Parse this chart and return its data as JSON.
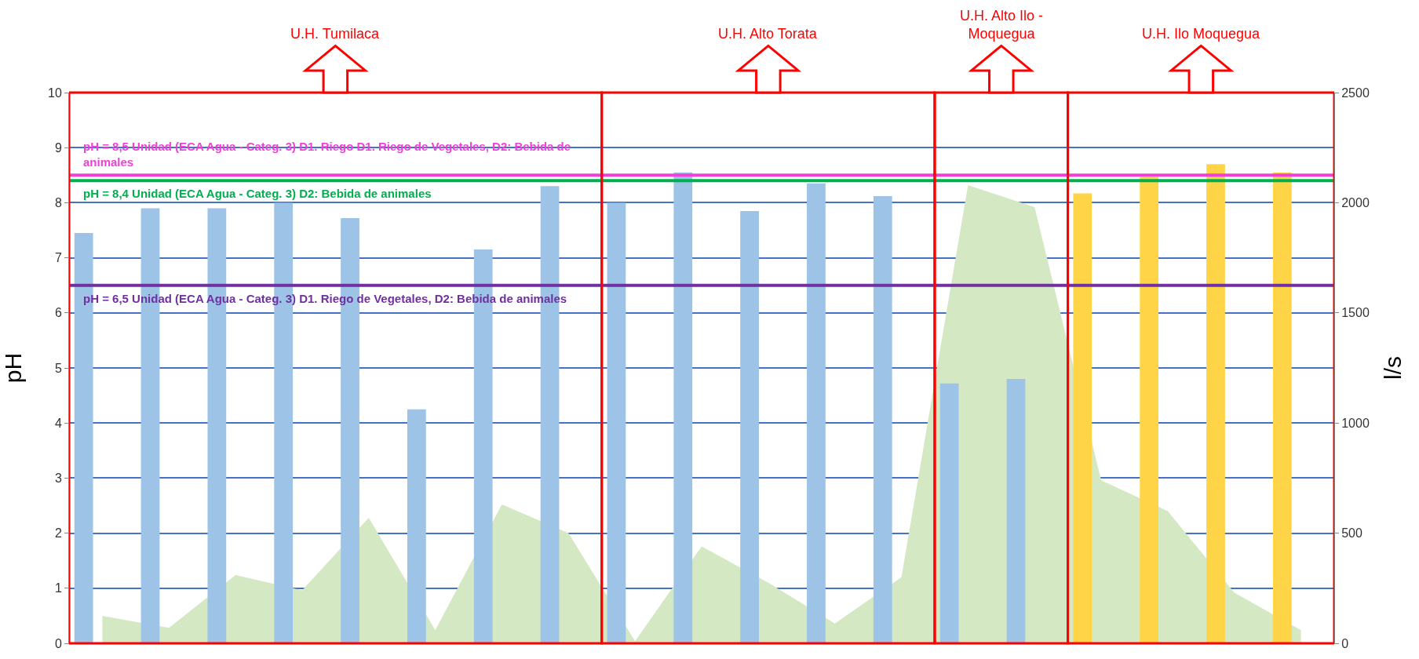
{
  "chart_data": {
    "type": "bar",
    "ylabel": "pH",
    "y2label": "l/s",
    "categories": [
      null,
      null,
      null,
      null,
      null,
      null,
      null,
      null,
      null,
      null,
      null,
      null,
      null,
      null,
      null,
      null,
      null,
      null,
      null
    ],
    "series": [
      {
        "colors": [
          "#9dc3e6",
          "#9dc3e6",
          "#9dc3e6",
          "#9dc3e6",
          "#9dc3e6",
          "#9dc3e6",
          "#9dc3e6",
          "#9dc3e6",
          "#9dc3e6",
          "#9dc3e6",
          "#9dc3e6",
          "#9dc3e6",
          "#9dc3e6",
          "#9dc3e6",
          "#9dc3e6",
          "#ffd447",
          "#ffd447",
          "#ffd447",
          "#ffd447"
        ],
        "values": [
          7.45,
          7.9,
          7.9,
          8.0,
          7.72,
          4.25,
          7.15,
          8.3,
          8.0,
          8.55,
          7.85,
          8.35,
          8.12,
          4.72,
          4.8,
          8.17,
          8.47,
          8.7,
          8.55
        ]
      },
      {
        "type": "area",
        "axis": "y2",
        "color": "#d5e8c4",
        "values": [
          125,
          70,
          310,
          240,
          570,
          60,
          630,
          500,
          10,
          440,
          275,
          90,
          300,
          2080,
          1980,
          740,
          600,
          230,
          60
        ]
      }
    ],
    "ylim": [
      0,
      10
    ],
    "yticks": [
      0,
      1,
      2,
      3,
      4,
      5,
      6,
      7,
      8,
      9,
      10
    ],
    "y2lim": [
      0,
      2500
    ],
    "y2ticks": [
      0,
      500,
      1000,
      1500,
      2000,
      2500
    ],
    "tick_labels": "y",
    "grid": "y",
    "ref_lines": [
      {
        "axis": "y",
        "value": 8.5,
        "label": "pH = 8,5 Unidad (ECA Agua - Categ. 3) D1. Riego D1. Riego de Vegetales, D2: Bebida de animales",
        "color": "#f040d8"
      },
      {
        "axis": "y",
        "value": 8.4,
        "label": "pH = 8,4 Unidad (ECA Agua - Categ. 3) D2: Bebida de animales",
        "color": "#00b050"
      },
      {
        "axis": "y",
        "value": 6.5,
        "label": "pH = 6,5 Unidad (ECA Agua - Categ. 3) D1. Riego de Vegetales, D2: Bebida de animales",
        "color": "#7030a0"
      }
    ],
    "annotations": [
      "U.H. Tumilaca",
      "U.H. Alto Torata",
      "U.H. Alto Ilo - Moquegua",
      "U.H. Ilo Moquegua"
    ]
  }
}
